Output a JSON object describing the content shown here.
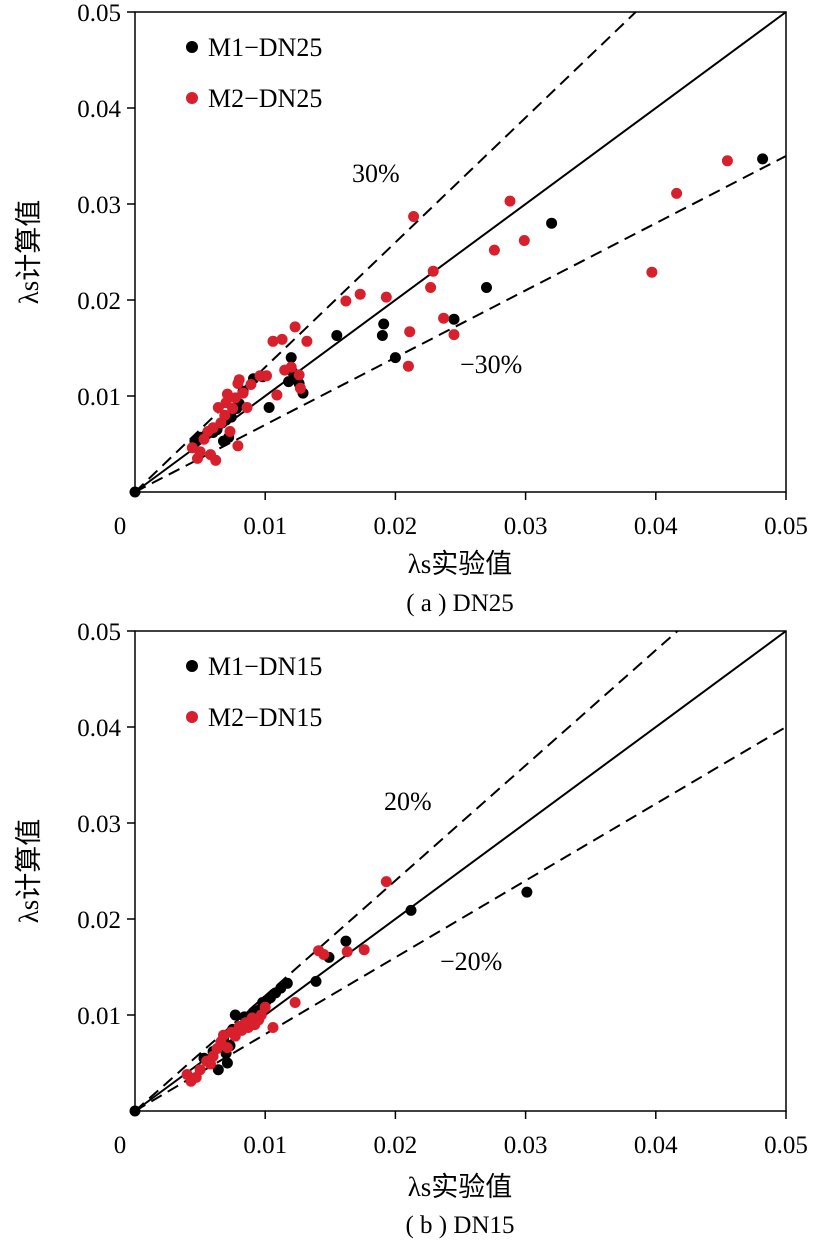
{
  "chart_data": [
    {
      "type": "scatter",
      "caption": "( a ) DN25",
      "xlabel": "λs实验值",
      "ylabel": "λs计算值",
      "xlim": [
        0,
        0.05
      ],
      "ylim": [
        0,
        0.05
      ],
      "xticks": [
        "0",
        "0.01",
        "0.02",
        "0.03",
        "0.04",
        "0.05"
      ],
      "yticks": [
        "0.01",
        "0.02",
        "0.03",
        "0.04",
        "0.05"
      ],
      "legend_position": "top-left",
      "reference_lines": [
        {
          "label": "",
          "style": "solid",
          "slope": 1.0
        },
        {
          "label": "30%",
          "style": "dashed",
          "slope": 1.3
        },
        {
          "label": "−30%",
          "style": "dashed",
          "slope": 0.7
        }
      ],
      "series": [
        {
          "name": "M1−DN25",
          "color": "#000000",
          "points": [
            [
              0.0,
              0.0
            ],
            [
              0.0046,
              0.0053
            ],
            [
              0.005,
              0.0057
            ],
            [
              0.0055,
              0.006
            ],
            [
              0.006,
              0.0062
            ],
            [
              0.0063,
              0.0065
            ],
            [
              0.0067,
              0.0072
            ],
            [
              0.0068,
              0.0053
            ],
            [
              0.007,
              0.0075
            ],
            [
              0.0072,
              0.0057
            ],
            [
              0.0074,
              0.0078
            ],
            [
              0.0078,
              0.0087
            ],
            [
              0.008,
              0.0092
            ],
            [
              0.0083,
              0.0105
            ],
            [
              0.0091,
              0.0118
            ],
            [
              0.0098,
              0.012
            ],
            [
              0.0103,
              0.0088
            ],
            [
              0.0118,
              0.0115
            ],
            [
              0.012,
              0.014
            ],
            [
              0.0121,
              0.0125
            ],
            [
              0.0123,
              0.0118
            ],
            [
              0.0126,
              0.0113
            ],
            [
              0.0129,
              0.0103
            ],
            [
              0.0155,
              0.0163
            ],
            [
              0.019,
              0.0163
            ],
            [
              0.0191,
              0.0175
            ],
            [
              0.02,
              0.014
            ],
            [
              0.0245,
              0.018
            ],
            [
              0.027,
              0.0213
            ],
            [
              0.032,
              0.028
            ],
            [
              0.0482,
              0.0347
            ]
          ]
        },
        {
          "name": "M2−DN25",
          "color": "#d7202b",
          "points": [
            [
              0.0044,
              0.0046
            ],
            [
              0.0048,
              0.0035
            ],
            [
              0.005,
              0.0042
            ],
            [
              0.0053,
              0.0055
            ],
            [
              0.0056,
              0.0063
            ],
            [
              0.0058,
              0.0039
            ],
            [
              0.006,
              0.0067
            ],
            [
              0.0062,
              0.0033
            ],
            [
              0.0064,
              0.0088
            ],
            [
              0.0066,
              0.0072
            ],
            [
              0.0069,
              0.008
            ],
            [
              0.007,
              0.0093
            ],
            [
              0.0071,
              0.0102
            ],
            [
              0.0073,
              0.0063
            ],
            [
              0.0075,
              0.0087
            ],
            [
              0.0077,
              0.0098
            ],
            [
              0.0079,
              0.0113
            ],
            [
              0.0079,
              0.0048
            ],
            [
              0.008,
              0.0117
            ],
            [
              0.0083,
              0.0103
            ],
            [
              0.0086,
              0.0088
            ],
            [
              0.0089,
              0.0112
            ],
            [
              0.0096,
              0.0121
            ],
            [
              0.0101,
              0.0121
            ],
            [
              0.0106,
              0.0157
            ],
            [
              0.0109,
              0.0101
            ],
            [
              0.0113,
              0.0159
            ],
            [
              0.0115,
              0.0127
            ],
            [
              0.012,
              0.013
            ],
            [
              0.0123,
              0.0172
            ],
            [
              0.0126,
              0.0122
            ],
            [
              0.0127,
              0.0108
            ],
            [
              0.0132,
              0.0157
            ],
            [
              0.0162,
              0.0199
            ],
            [
              0.0173,
              0.0206
            ],
            [
              0.0193,
              0.0203
            ],
            [
              0.021,
              0.0131
            ],
            [
              0.0211,
              0.0167
            ],
            [
              0.0214,
              0.0287
            ],
            [
              0.0227,
              0.0213
            ],
            [
              0.0229,
              0.023
            ],
            [
              0.0237,
              0.0181
            ],
            [
              0.0245,
              0.0164
            ],
            [
              0.0276,
              0.0252
            ],
            [
              0.0288,
              0.0303
            ],
            [
              0.0299,
              0.0262
            ],
            [
              0.0397,
              0.0229
            ],
            [
              0.0416,
              0.0311
            ],
            [
              0.0455,
              0.0345
            ]
          ]
        }
      ]
    },
    {
      "type": "scatter",
      "caption": "( b ) DN15",
      "xlabel": "λs实验值",
      "ylabel": "λs计算值",
      "xlim": [
        0,
        0.05
      ],
      "ylim": [
        0,
        0.05
      ],
      "xticks": [
        "0",
        "0.01",
        "0.02",
        "0.03",
        "0.04",
        "0.05"
      ],
      "yticks": [
        "0.01",
        "0.02",
        "0.03",
        "0.04",
        "0.05"
      ],
      "legend_position": "top-left",
      "reference_lines": [
        {
          "label": "",
          "style": "solid",
          "slope": 1.0
        },
        {
          "label": "20%",
          "style": "dashed",
          "slope": 1.2
        },
        {
          "label": "−20%",
          "style": "dashed",
          "slope": 0.8
        }
      ],
      "series": [
        {
          "name": "M1−DN15",
          "color": "#000000",
          "points": [
            [
              0.0,
              0.0
            ],
            [
              0.0053,
              0.0055
            ],
            [
              0.006,
              0.0062
            ],
            [
              0.0064,
              0.0043
            ],
            [
              0.0068,
              0.0075
            ],
            [
              0.007,
              0.006
            ],
            [
              0.0071,
              0.005
            ],
            [
              0.0073,
              0.0068
            ],
            [
              0.0075,
              0.0085
            ],
            [
              0.0077,
              0.01
            ],
            [
              0.0082,
              0.0088
            ],
            [
              0.0084,
              0.0098
            ],
            [
              0.0087,
              0.0092
            ],
            [
              0.0089,
              0.01
            ],
            [
              0.0092,
              0.0103
            ],
            [
              0.0095,
              0.0105
            ],
            [
              0.0098,
              0.0113
            ],
            [
              0.0101,
              0.0115
            ],
            [
              0.0104,
              0.0118
            ],
            [
              0.0108,
              0.0123
            ],
            [
              0.0112,
              0.0128
            ],
            [
              0.0117,
              0.0133
            ],
            [
              0.0139,
              0.0135
            ],
            [
              0.0149,
              0.016
            ],
            [
              0.0162,
              0.0177
            ],
            [
              0.0212,
              0.0209
            ],
            [
              0.0301,
              0.0228
            ]
          ]
        },
        {
          "name": "M2−DN15",
          "color": "#d7202b",
          "points": [
            [
              0.004,
              0.0038
            ],
            [
              0.0043,
              0.0031
            ],
            [
              0.0047,
              0.0035
            ],
            [
              0.005,
              0.0043
            ],
            [
              0.0055,
              0.0052
            ],
            [
              0.0058,
              0.0049
            ],
            [
              0.006,
              0.0057
            ],
            [
              0.0063,
              0.0065
            ],
            [
              0.0066,
              0.0072
            ],
            [
              0.0068,
              0.0079
            ],
            [
              0.0071,
              0.0066
            ],
            [
              0.0074,
              0.0082
            ],
            [
              0.0077,
              0.0078
            ],
            [
              0.008,
              0.0088
            ],
            [
              0.0082,
              0.0084
            ],
            [
              0.0085,
              0.0092
            ],
            [
              0.0087,
              0.0087
            ],
            [
              0.009,
              0.0097
            ],
            [
              0.0092,
              0.009
            ],
            [
              0.0095,
              0.0095
            ],
            [
              0.0097,
              0.01
            ],
            [
              0.01,
              0.0108
            ],
            [
              0.0106,
              0.0087
            ],
            [
              0.0123,
              0.0113
            ],
            [
              0.0141,
              0.0167
            ],
            [
              0.0145,
              0.0163
            ],
            [
              0.0163,
              0.0166
            ],
            [
              0.0176,
              0.0168
            ],
            [
              0.0193,
              0.0239
            ]
          ]
        }
      ]
    }
  ]
}
